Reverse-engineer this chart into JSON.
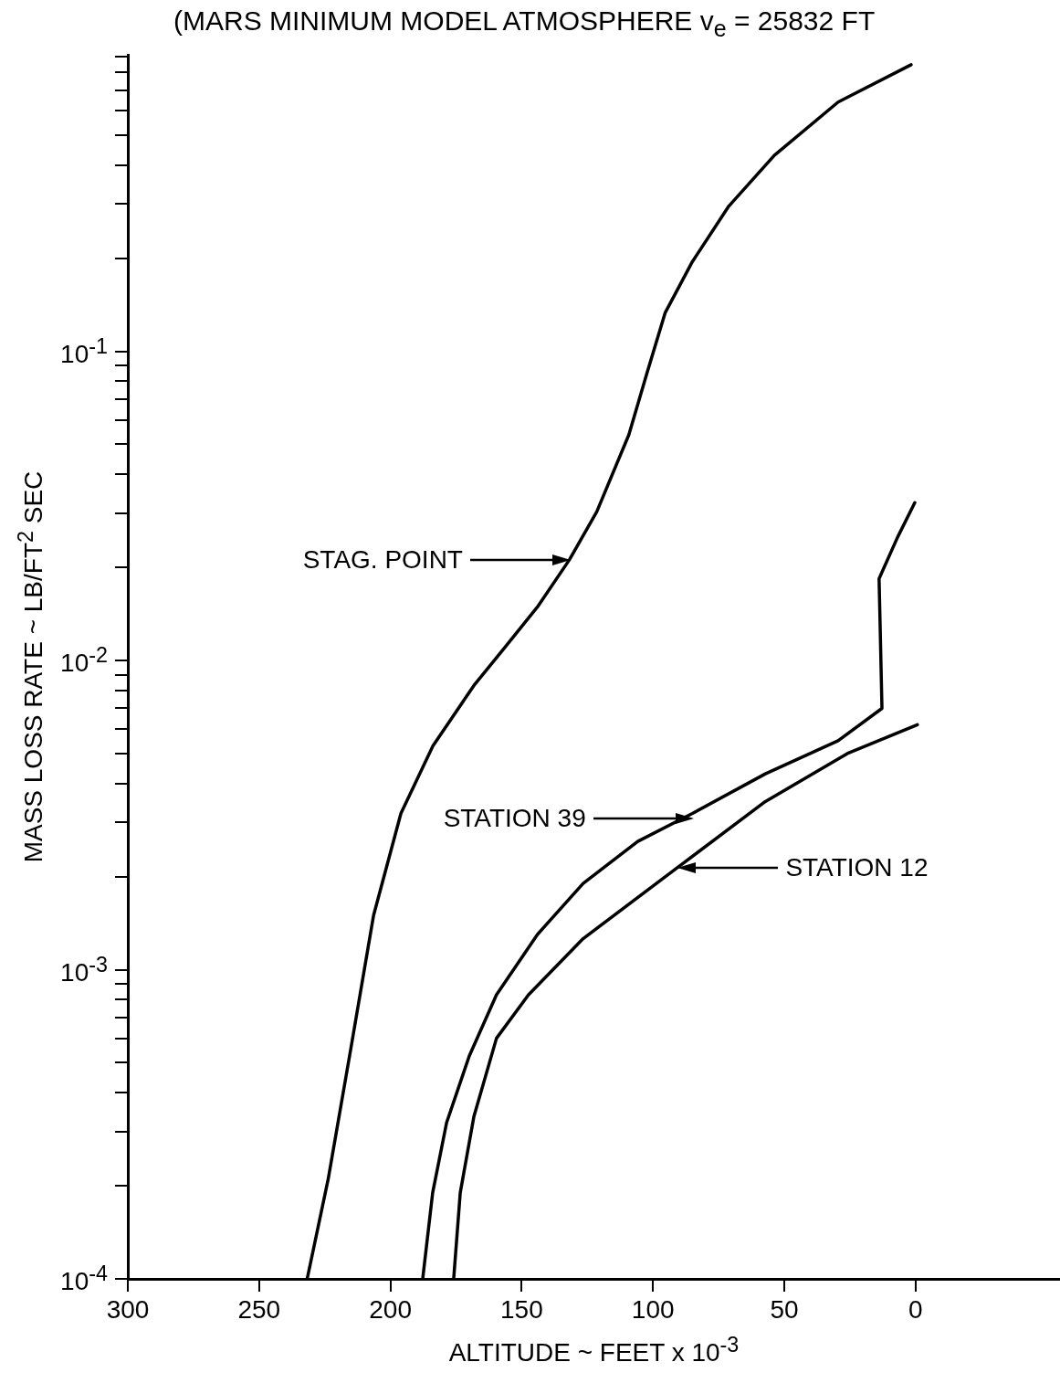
{
  "chart_data": {
    "type": "line",
    "title": "(MARS MINIMUM MODEL ATMOSPHERE   v$_{e}$ = 25832 FT",
    "xlabel": "ALTITUDE ~ FEET x 10$^{-3}$",
    "ylabel": "MASS LOSS RATE ~ LB/FT$^{2}$ SEC",
    "log": "y",
    "grid": false,
    "legend": false,
    "marker": "none",
    "line_style": "solid",
    "xlim": [
      300,
      -55
    ],
    "xticks": [
      300,
      250,
      200,
      150,
      100,
      50,
      0
    ],
    "ylim": [
      0.0001,
      0.91
    ],
    "yticks": [
      {
        "value": 0.0001,
        "label": "10$^{-4}$"
      },
      {
        "value": 0.0002,
        "label": null
      },
      {
        "value": 0.0003,
        "label": null
      },
      {
        "value": 0.0004,
        "label": null
      },
      {
        "value": 0.0005,
        "label": null
      },
      {
        "value": 0.0006,
        "label": null
      },
      {
        "value": 0.0007,
        "label": null
      },
      {
        "value": 0.0008,
        "label": null
      },
      {
        "value": 0.0009,
        "label": null
      },
      {
        "value": 0.001,
        "label": "10$^{-3}$"
      },
      {
        "value": 0.002,
        "label": null
      },
      {
        "value": 0.003,
        "label": null
      },
      {
        "value": 0.004,
        "label": null
      },
      {
        "value": 0.005,
        "label": null
      },
      {
        "value": 0.006,
        "label": null
      },
      {
        "value": 0.007,
        "label": null
      },
      {
        "value": 0.008,
        "label": null
      },
      {
        "value": 0.009,
        "label": null
      },
      {
        "value": 0.01,
        "label": "10$^{-2}$"
      },
      {
        "value": 0.02,
        "label": null
      },
      {
        "value": 0.03,
        "label": null
      },
      {
        "value": 0.04,
        "label": null
      },
      {
        "value": 0.05,
        "label": null
      },
      {
        "value": 0.06,
        "label": null
      },
      {
        "value": 0.07,
        "label": null
      },
      {
        "value": 0.08,
        "label": null
      },
      {
        "value": 0.09,
        "label": null
      },
      {
        "value": 0.1,
        "label": "10$^{-1}$"
      },
      {
        "value": 0.2,
        "label": null
      },
      {
        "value": 0.3,
        "label": null
      },
      {
        "value": 0.4,
        "label": null
      },
      {
        "value": 0.5,
        "label": null
      },
      {
        "value": 0.6,
        "label": null
      },
      {
        "value": 0.7,
        "label": null
      },
      {
        "value": 0.8,
        "label": null
      },
      {
        "value": 0.9,
        "label": null
      }
    ],
    "series": [
      {
        "color": "#000000",
        "x": [
          231.7,
          223.7,
          215,
          206.4,
          196,
          183.8,
          168.2,
          156.1,
          144,
          131.8,
          121.4,
          109.2,
          102.3,
          95.4,
          85,
          71.1,
          53.8,
          29.5,
          1.7
        ],
        "values": [
          0.0001,
          0.00021,
          0.00056,
          0.0015,
          0.0032,
          0.0053,
          0.0083,
          0.0111,
          0.0149,
          0.0212,
          0.0303,
          0.0537,
          0.085,
          0.133,
          0.195,
          0.295,
          0.43,
          0.64,
          0.845
        ]
      },
      {
        "color": "#000000",
        "x": [
          187.7,
          183.9,
          178.6,
          170,
          159.6,
          144,
          126.6,
          105.8,
          85,
          57.2,
          29.5,
          12.8,
          13.9,
          6.9,
          0.3
        ],
        "values": [
          0.0001,
          0.00019,
          0.00032,
          0.000525,
          0.00083,
          0.0013,
          0.0019,
          0.0026,
          0.0032,
          0.0043,
          0.0055,
          0.007,
          0.0184,
          0.025,
          0.0324
        ]
      },
      {
        "color": "#000000",
        "x": [
          175.9,
          173.4,
          168.2,
          159.6,
          147.4,
          126.6,
          91.9,
          57.2,
          26,
          -0.7
        ],
        "values": [
          0.0001,
          0.00019,
          0.000335,
          0.0006,
          0.00083,
          0.00126,
          0.0021,
          0.0035,
          0.005,
          0.0062
        ]
      }
    ],
    "annotations": [
      "STAG. POINT",
      "STATION 39",
      "STATION 12"
    ]
  }
}
